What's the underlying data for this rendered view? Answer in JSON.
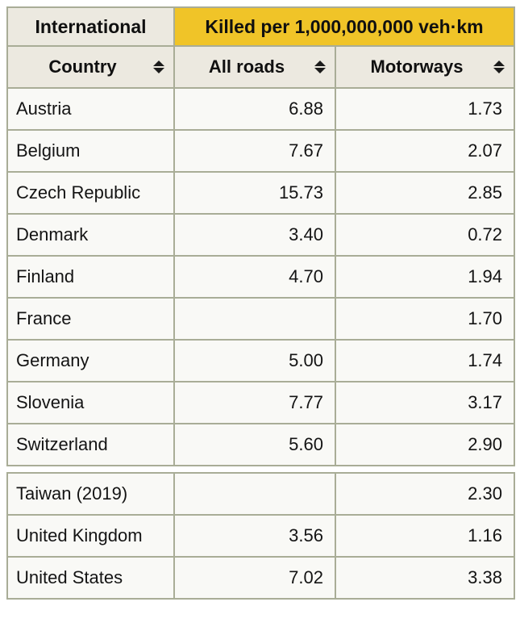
{
  "table": {
    "corner_label": "International",
    "banner_label": "Killed per 1,000,000,000 veh·km",
    "columns": [
      {
        "label": "Country"
      },
      {
        "label": "All roads"
      },
      {
        "label": "Motorways"
      }
    ],
    "rows": [
      {
        "country": "Austria",
        "all_roads": "6.88",
        "motorways": "1.73"
      },
      {
        "country": "Belgium",
        "all_roads": "7.67",
        "motorways": "2.07"
      },
      {
        "country": "Czech Republic",
        "all_roads": "15.73",
        "motorways": "2.85"
      },
      {
        "country": "Denmark",
        "all_roads": "3.40",
        "motorways": "0.72"
      },
      {
        "country": "Finland",
        "all_roads": "4.70",
        "motorways": "1.94"
      },
      {
        "country": "France",
        "all_roads": "",
        "motorways": "1.70"
      },
      {
        "country": "Germany",
        "all_roads": "5.00",
        "motorways": "1.74"
      },
      {
        "country": "Slovenia",
        "all_roads": "7.77",
        "motorways": "3.17"
      },
      {
        "country": "Switzerland",
        "all_roads": "5.60",
        "motorways": "2.90"
      },
      {
        "country": "Taiwan (2019)",
        "all_roads": "",
        "motorways": "2.30"
      },
      {
        "country": "United Kingdom",
        "all_roads": "3.56",
        "motorways": "1.16"
      },
      {
        "country": "United States",
        "all_roads": "7.02",
        "motorways": "3.38"
      }
    ]
  },
  "colors": {
    "banner_bg": "#f0c428",
    "header_bg": "#ece9e0",
    "cell_bg": "#f9f9f6",
    "border": "#a9ad97"
  },
  "chart_data": {
    "type": "table",
    "title": "Killed per 1,000,000,000 veh·km",
    "group_header": "International",
    "columns": [
      "Country",
      "All roads",
      "Motorways"
    ],
    "rows": [
      [
        "Austria",
        6.88,
        1.73
      ],
      [
        "Belgium",
        7.67,
        2.07
      ],
      [
        "Czech Republic",
        15.73,
        2.85
      ],
      [
        "Denmark",
        3.4,
        0.72
      ],
      [
        "Finland",
        4.7,
        1.94
      ],
      [
        "France",
        null,
        1.7
      ],
      [
        "Germany",
        5.0,
        1.74
      ],
      [
        "Slovenia",
        7.77,
        3.17
      ],
      [
        "Switzerland",
        5.6,
        2.9
      ],
      [
        "Taiwan (2019)",
        null,
        2.3
      ],
      [
        "United Kingdom",
        3.56,
        1.16
      ],
      [
        "United States",
        7.02,
        3.38
      ]
    ]
  }
}
